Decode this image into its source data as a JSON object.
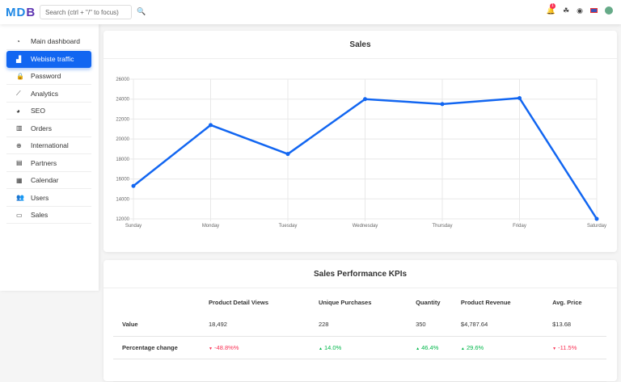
{
  "navbar": {
    "logo": "MDB",
    "search_placeholder": "Search (ctrl + \"/\" to focus)",
    "notification_count": "1",
    "icons": [
      "bell-icon",
      "paint-icon",
      "github-icon",
      "flag-uk-icon",
      "avatar"
    ]
  },
  "sidebar": {
    "items": [
      {
        "label": "Main dashboard",
        "icon": "tachometer-icon"
      },
      {
        "label": "Webiste traffic",
        "icon": "chart-area-icon",
        "active": true
      },
      {
        "label": "Password",
        "icon": "lock-icon"
      },
      {
        "label": "Analytics",
        "icon": "chart-line-icon"
      },
      {
        "label": "SEO",
        "icon": "chart-pie-icon"
      },
      {
        "label": "Orders",
        "icon": "chart-bar-icon"
      },
      {
        "label": "International",
        "icon": "globe-icon"
      },
      {
        "label": "Partners",
        "icon": "building-icon"
      },
      {
        "label": "Calendar",
        "icon": "calendar-icon"
      },
      {
        "label": "Users",
        "icon": "users-icon"
      },
      {
        "label": "Sales",
        "icon": "money-icon"
      }
    ]
  },
  "sales_card": {
    "title": "Sales"
  },
  "chart_data": {
    "type": "line",
    "categories": [
      "Sunday",
      "Monday",
      "Tuesday",
      "Wednesday",
      "Thursday",
      "Friday",
      "Saturday"
    ],
    "values": [
      15300,
      21400,
      18500,
      24000,
      23500,
      24100,
      12000
    ],
    "ylim": [
      12000,
      26000
    ],
    "yticks": [
      "12000",
      "14000",
      "16000",
      "18000",
      "20000",
      "22000",
      "24000",
      "26000"
    ],
    "grid": true,
    "color": "#1266f1"
  },
  "kpi_card": {
    "title": "Sales Performance KPIs",
    "headers": [
      "",
      "Product Detail Views",
      "Unique Purchases",
      "Quantity",
      "Product Revenue",
      "Avg. Price"
    ],
    "rows": [
      {
        "label": "Value",
        "cells": [
          {
            "text": "18,492"
          },
          {
            "text": "228"
          },
          {
            "text": "350"
          },
          {
            "text": "$4,787.64"
          },
          {
            "text": "$13.68"
          }
        ]
      },
      {
        "label": "Percentage change",
        "cells": [
          {
            "text": "-48.8%%",
            "dir": "down"
          },
          {
            "text": "14.0%",
            "dir": "up"
          },
          {
            "text": "46.4%",
            "dir": "up"
          },
          {
            "text": "29.6%",
            "dir": "up"
          },
          {
            "text": "-11.5%",
            "dir": "down"
          }
        ]
      }
    ]
  }
}
